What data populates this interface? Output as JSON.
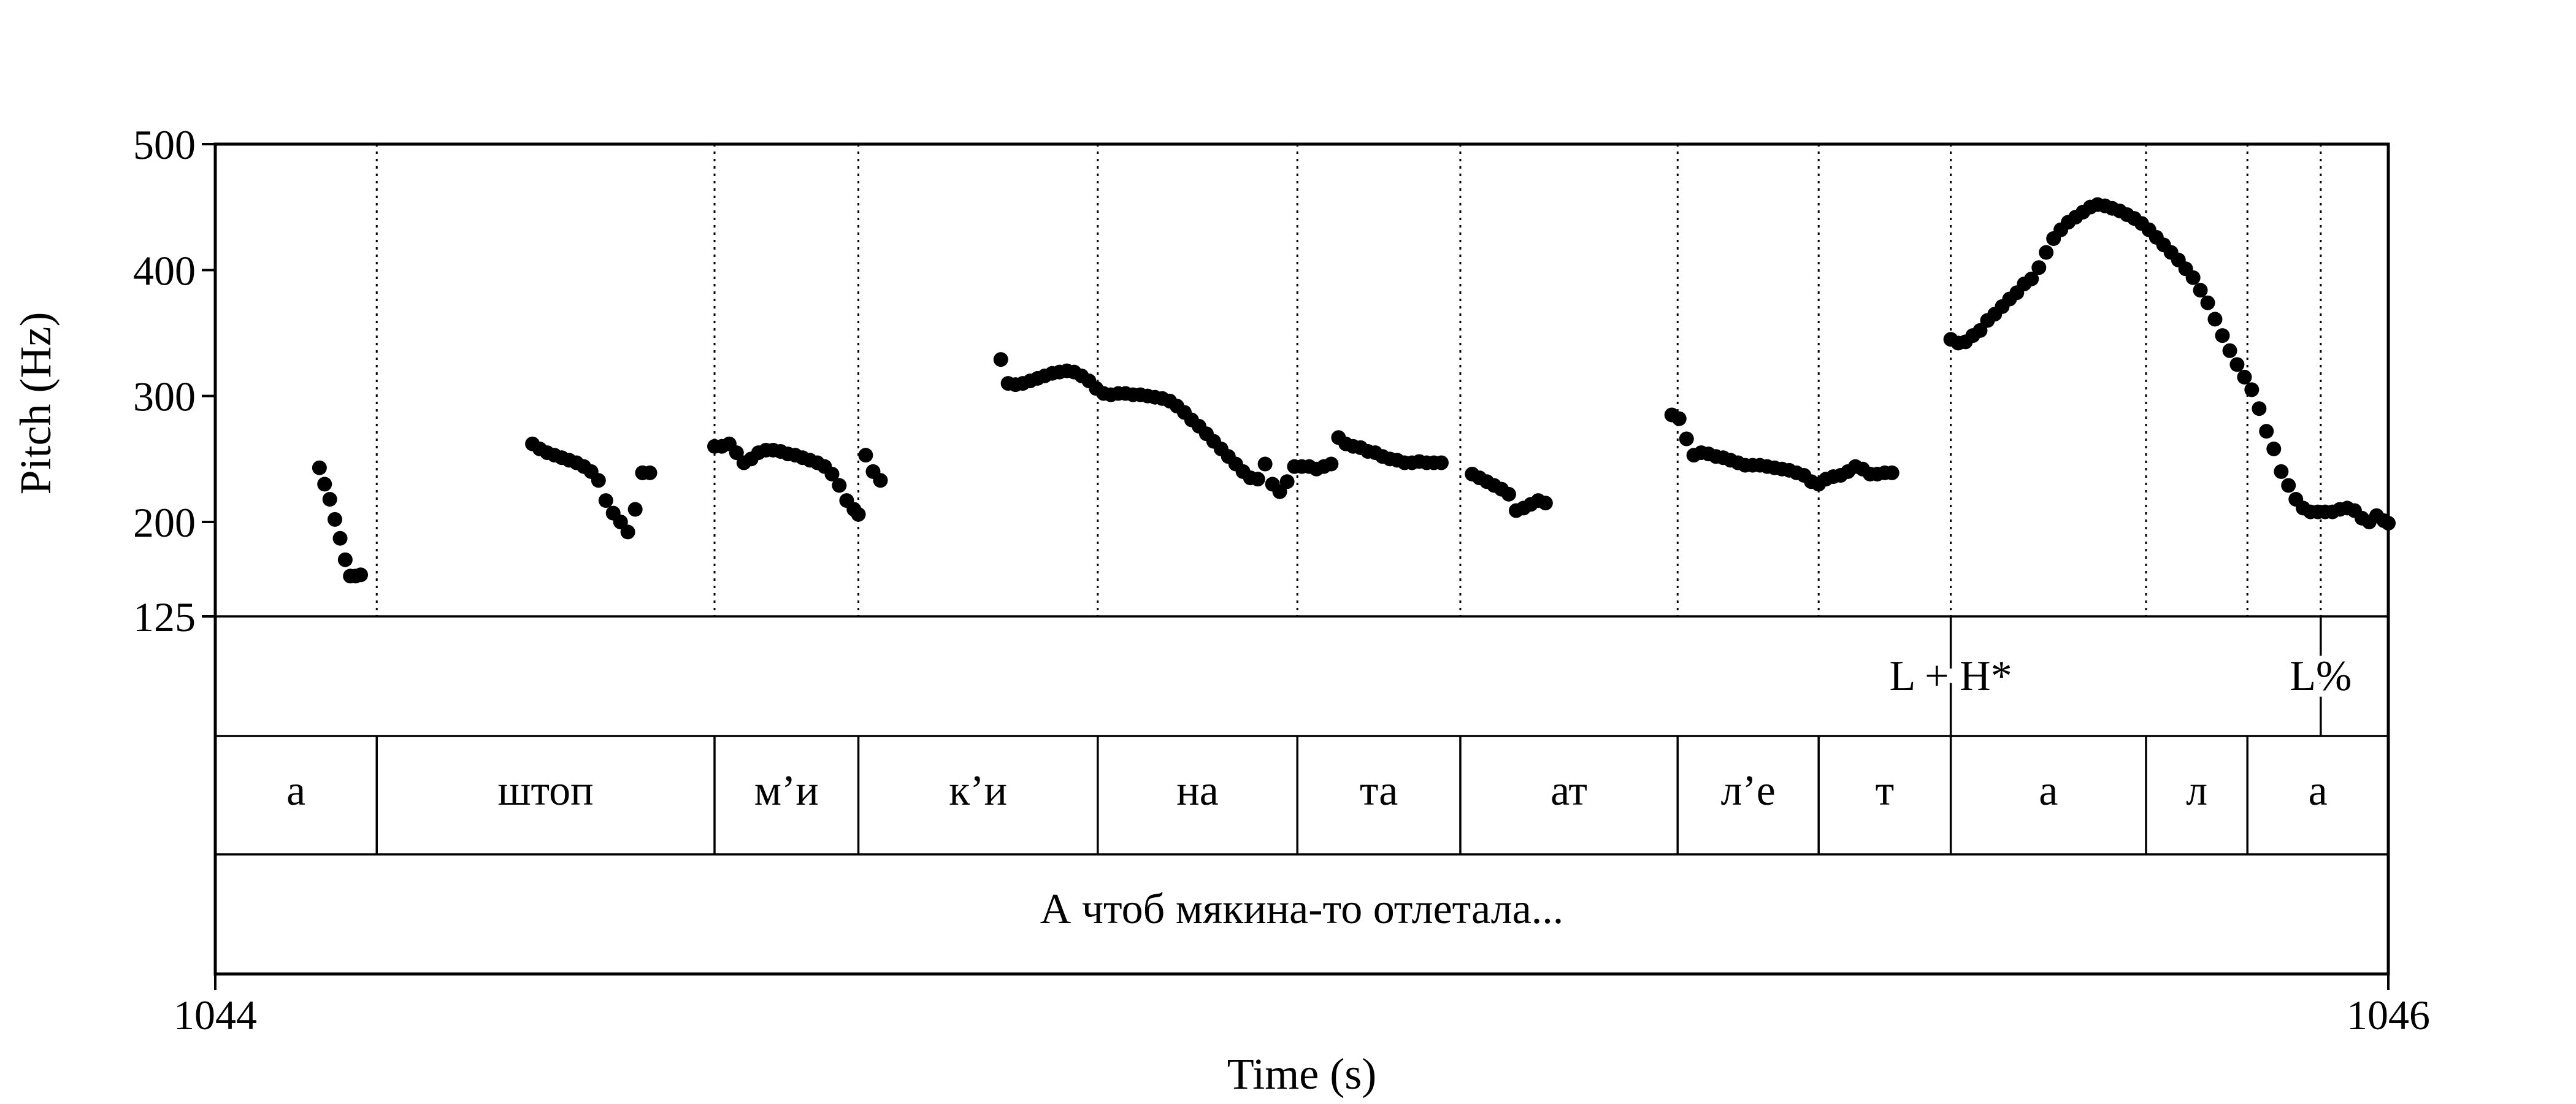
{
  "chart_data": {
    "type": "scatter",
    "xlabel": "Time (s)",
    "ylabel": "Pitch (Hz)",
    "xlim": [
      1044,
      1046
    ],
    "ylim": [
      125,
      500
    ],
    "x_tick_labels": [
      "1044",
      "1046"
    ],
    "y_ticks": [
      125,
      200,
      300,
      400,
      500
    ],
    "y_tick_labels": [
      "125",
      "200",
      "300",
      "400",
      "500"
    ],
    "boundaries": [
      1044.1486,
      1044.4595,
      1044.5919,
      1044.8122,
      1044.9959,
      1045.1459,
      1045.3459,
      1045.4757,
      1045.5973,
      1045.777,
      1045.8703,
      1045.9378
    ],
    "tone_tier": [
      {
        "label": "L + H*",
        "time": 1045.5973
      },
      {
        "label": "L%",
        "time": 1045.9378
      }
    ],
    "syllable_tier": [
      {
        "label": "а",
        "start": 1044.0,
        "end": 1044.1486
      },
      {
        "label": "штоп",
        "start": 1044.1486,
        "end": 1044.4595
      },
      {
        "label": "м’и",
        "start": 1044.4595,
        "end": 1044.5919
      },
      {
        "label": "к’и",
        "start": 1044.5919,
        "end": 1044.8122
      },
      {
        "label": "на",
        "start": 1044.8122,
        "end": 1044.9959
      },
      {
        "label": "та",
        "start": 1044.9959,
        "end": 1045.1459
      },
      {
        "label": "ат",
        "start": 1045.1459,
        "end": 1045.3459
      },
      {
        "label": "л’е",
        "start": 1045.3459,
        "end": 1045.4757
      },
      {
        "label": "т",
        "start": 1045.4757,
        "end": 1045.5973
      },
      {
        "label": "а",
        "start": 1045.5973,
        "end": 1045.777
      },
      {
        "label": "л",
        "start": 1045.777,
        "end": 1045.8703
      },
      {
        "label": "а",
        "start": 1045.8703,
        "end": 1046.0
      }
    ],
    "sentence_tier": "А чтоб мякина-то отлетала...",
    "segments": [
      {
        "x": [
          1044.0959,
          1044.1006,
          1044.1054,
          1044.1101,
          1044.1149,
          1044.1196,
          1044.1243,
          1044.1291,
          1044.1338
        ],
        "y": [
          243,
          230,
          218,
          202,
          187,
          170,
          157,
          157,
          158
        ]
      },
      {
        "x": [
          1044.2919,
          1044.2986,
          1044.3054,
          1044.3122,
          1044.3189,
          1044.3257,
          1044.3324,
          1044.3392,
          1044.3459,
          1044.3527,
          1044.3595,
          1044.3662,
          1044.373,
          1044.3797,
          1044.3865,
          1044.3932
        ],
        "y": [
          262,
          258,
          255,
          253,
          251,
          249,
          247,
          244,
          240,
          233,
          217,
          207,
          200,
          192,
          210,
          239
        ]
      },
      {
        "x": [
          1044.3932,
          1044.4
        ],
        "y": [
          239,
          239
        ]
      },
      {
        "x": [
          1044.4595,
          1044.4662,
          1044.473,
          1044.4797,
          1044.4865,
          1044.4932,
          1044.5,
          1044.5068,
          1044.5135,
          1044.5203,
          1044.527,
          1044.5338,
          1044.5405,
          1044.5473,
          1044.5541,
          1044.5608,
          1044.5676,
          1044.5743,
          1044.5811,
          1044.5878
        ],
        "y": [
          260,
          260,
          262,
          255,
          247,
          250,
          255,
          257,
          257,
          256,
          254,
          253,
          251,
          249,
          247,
          244,
          238,
          229,
          217,
          210
        ]
      },
      {
        "x": [
          1044.5919,
          1044.5986,
          1044.6054,
          1044.6122
        ],
        "y": [
          206,
          253,
          240,
          233
        ]
      },
      {
        "x": [
          1044.723,
          1044.7297,
          1044.7365,
          1044.7432,
          1044.75,
          1044.7568,
          1044.7635,
          1044.7703,
          1044.777,
          1044.7838,
          1044.7905,
          1044.7973,
          1044.8041,
          1044.8108,
          1044.8176,
          1044.8243,
          1044.8311,
          1044.8378,
          1044.8446,
          1044.8514,
          1044.8581,
          1044.8649,
          1044.8716,
          1044.8784,
          1044.8851,
          1044.8919,
          1044.8986,
          1044.9054,
          1044.9122,
          1044.9189,
          1044.9257,
          1044.9324,
          1044.9392,
          1044.9459,
          1044.9527,
          1044.9595,
          1044.9662,
          1044.973,
          1044.9797,
          1044.9865,
          1044.9932
        ],
        "y": [
          329,
          310,
          309,
          310,
          312,
          314,
          316,
          318,
          319,
          320,
          319,
          316,
          312,
          306,
          302,
          301,
          302,
          302,
          301,
          301,
          300,
          299,
          298,
          296,
          292,
          287,
          281,
          276,
          270,
          264,
          258,
          252,
          246,
          240,
          235,
          234,
          246,
          230,
          224,
          232,
          244
        ]
      },
      {
        "x": [
          1045.0,
          1045.0068,
          1045.0135,
          1045.0203,
          1045.027,
          1045.0338,
          1045.0405,
          1045.0473,
          1045.0541,
          1045.0608,
          1045.0676,
          1045.0743,
          1045.0811,
          1045.0878,
          1045.0946,
          1045.1014,
          1045.1081,
          1045.1149,
          1045.1216,
          1045.1284
        ],
        "y": [
          244,
          244,
          242,
          244,
          246,
          267,
          262,
          260,
          259,
          256,
          255,
          252,
          250,
          249,
          247,
          247,
          248,
          247,
          247,
          247
        ]
      },
      {
        "x": [
          1045.1568,
          1045.1635,
          1045.1703,
          1045.177,
          1045.1838,
          1045.1905,
          1045.1973,
          1045.2041,
          1045.2108,
          1045.2176,
          1045.2243
        ],
        "y": [
          238,
          235,
          232,
          229,
          226,
          222,
          209,
          211,
          214,
          217,
          215
        ]
      },
      {
        "x": [
          1045.3405,
          1045.3473,
          1045.3541,
          1045.3608,
          1045.3676,
          1045.3743,
          1045.3811,
          1045.3878,
          1045.3946,
          1045.4014,
          1045.4081,
          1045.4149,
          1045.4216,
          1045.4284,
          1045.4351,
          1045.4419,
          1045.4486,
          1045.4554,
          1045.4622,
          1045.4689,
          1045.4757,
          1045.4824,
          1045.4892,
          1045.4959,
          1045.5027,
          1045.5095,
          1045.5162,
          1045.523,
          1045.5297,
          1045.5365,
          1045.5432
        ],
        "y": [
          285,
          282,
          266,
          253,
          255,
          254,
          252,
          251,
          249,
          247,
          245,
          245,
          245,
          244,
          243,
          242,
          241,
          239,
          237,
          232,
          230,
          234,
          236,
          237,
          240,
          244,
          242,
          238,
          238,
          239,
          239
        ]
      },
      {
        "x": [
          1045.5973,
          1045.6041,
          1045.6108,
          1045.6176,
          1045.6243,
          1045.6311,
          1045.6378,
          1045.6446,
          1045.6514,
          1045.6581,
          1045.6649,
          1045.6716,
          1045.6784,
          1045.6851,
          1045.6919,
          1045.6986,
          1045.7054,
          1045.7122,
          1045.7189,
          1045.7257,
          1045.7324,
          1045.7392,
          1045.7459,
          1045.7527,
          1045.7595,
          1045.7662,
          1045.773,
          1045.7797,
          1045.7865,
          1045.7932,
          1045.8,
          1045.8068,
          1045.8135,
          1045.8203,
          1045.827,
          1045.8338,
          1045.8405,
          1045.8473,
          1045.8541,
          1045.8608,
          1045.8676,
          1045.8743,
          1045.8811,
          1045.8878,
          1045.8946,
          1045.9014,
          1045.9081,
          1045.9149,
          1045.9216,
          1045.9284,
          1045.9351,
          1045.9419,
          1045.9486,
          1045.9554,
          1045.9622,
          1045.9689,
          1045.9757,
          1045.9824,
          1045.9892,
          1045.9959,
          1046.0
        ],
        "y": [
          345,
          342,
          343,
          348,
          352,
          360,
          365,
          371,
          377,
          382,
          389,
          393,
          402,
          414,
          425,
          432,
          438,
          442,
          446,
          450,
          452,
          451,
          449,
          447,
          444,
          441,
          437,
          432,
          426,
          420,
          414,
          408,
          401,
          394,
          384,
          374,
          361,
          348,
          336,
          325,
          315,
          305,
          290,
          272,
          258,
          240,
          229,
          218,
          211,
          208,
          208,
          208,
          208,
          210,
          211,
          209,
          203,
          200,
          205,
          201,
          199
        ]
      }
    ]
  }
}
